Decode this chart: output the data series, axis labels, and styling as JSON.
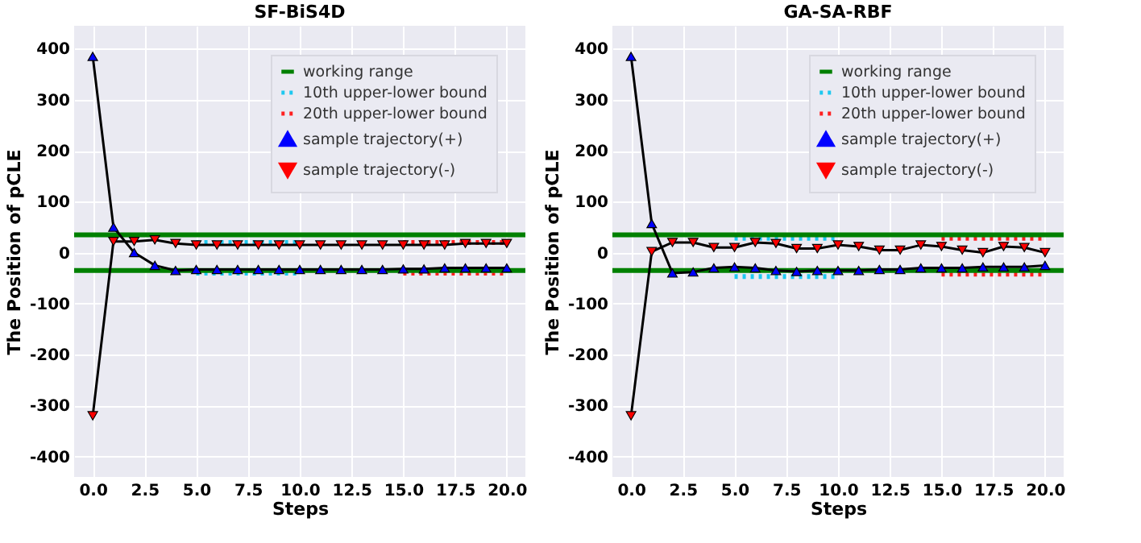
{
  "chart_data": [
    {
      "type": "line",
      "title": "SF-BiS4D",
      "xlabel": "Steps",
      "ylabel": "The Position of pCLE",
      "xlim": [
        -0.9,
        20.9
      ],
      "ylim": [
        -440,
        445
      ],
      "xticks": [
        {
          "value": 0,
          "label": "0.0"
        },
        {
          "value": 2.5,
          "label": "2.5"
        },
        {
          "value": 5,
          "label": "5.0"
        },
        {
          "value": 7.5,
          "label": "7.5"
        },
        {
          "value": 10,
          "label": "10.0"
        },
        {
          "value": 12.5,
          "label": "12.5"
        },
        {
          "value": 15,
          "label": "15.0"
        },
        {
          "value": 17.5,
          "label": "17.5"
        },
        {
          "value": 20,
          "label": "20.0"
        }
      ],
      "yticks": [
        -400,
        -300,
        -200,
        -100,
        0,
        100,
        200,
        300,
        400
      ],
      "grid": true,
      "legend": "top right",
      "ref_lines": [
        {
          "axis": "y",
          "value": 35,
          "label": "working range",
          "color": "#008000"
        },
        {
          "axis": "y",
          "value": -35,
          "color": "#008000"
        }
      ],
      "series": [
        {
          "name": "10th upper-lower bound",
          "color": "#1ec8f0",
          "line_style": "dotted",
          "x": [
            5,
            10
          ],
          "values": [
            20,
            20
          ]
        },
        {
          "color": "#1ec8f0",
          "line_style": "dotted",
          "x": [
            5,
            10
          ],
          "values": [
            -40,
            -40
          ]
        },
        {
          "name": "20th upper-lower bound",
          "color": "#ff2020",
          "line_style": "dotted",
          "x": [
            15,
            20
          ],
          "values": [
            20,
            20
          ]
        },
        {
          "color": "#ff2020",
          "line_style": "dotted",
          "x": [
            15,
            20
          ],
          "values": [
            -40,
            -40
          ]
        },
        {
          "name": "sample trajectory(+)",
          "color": "#0000ff",
          "marker": "triangle",
          "x": [
            0,
            1,
            2,
            3,
            4,
            5,
            6,
            7,
            8,
            9,
            10,
            11,
            12,
            13,
            14,
            15,
            16,
            17,
            18,
            19,
            20
          ],
          "values": [
            385,
            50,
            0,
            -25,
            -35,
            -33,
            -33,
            -33,
            -33,
            -33,
            -33,
            -33,
            -33,
            -33,
            -33,
            -32,
            -32,
            -30,
            -30,
            -30,
            -30
          ]
        },
        {
          "name": "sample trajectory(-)",
          "color": "#ff0000",
          "marker": "triangle-down",
          "x": [
            0,
            1,
            2,
            3,
            4,
            5,
            6,
            7,
            8,
            9,
            10,
            11,
            12,
            13,
            14,
            15,
            16,
            17,
            18,
            19,
            20
          ],
          "values": [
            -320,
            22,
            22,
            25,
            18,
            15,
            15,
            15,
            15,
            15,
            15,
            15,
            15,
            15,
            15,
            15,
            15,
            15,
            18,
            18,
            18
          ]
        }
      ]
    },
    {
      "type": "line",
      "title": "GA-SA-RBF",
      "xlabel": "Steps",
      "ylabel": "The Position of pCLE",
      "xlim": [
        -0.9,
        20.9
      ],
      "ylim": [
        -440,
        445
      ],
      "xticks": [
        {
          "value": 0,
          "label": "0.0"
        },
        {
          "value": 2.5,
          "label": "2.5"
        },
        {
          "value": 5,
          "label": "5.0"
        },
        {
          "value": 7.5,
          "label": "7.5"
        },
        {
          "value": 10,
          "label": "10.0"
        },
        {
          "value": 12.5,
          "label": "12.5"
        },
        {
          "value": 15,
          "label": "15.0"
        },
        {
          "value": 17.5,
          "label": "17.5"
        },
        {
          "value": 20,
          "label": "20.0"
        }
      ],
      "yticks": [
        -400,
        -300,
        -200,
        -100,
        0,
        100,
        200,
        300,
        400
      ],
      "grid": true,
      "legend": "top right",
      "ref_lines": [
        {
          "axis": "y",
          "value": 35,
          "label": "working range",
          "color": "#008000"
        },
        {
          "axis": "y",
          "value": -35,
          "color": "#008000"
        }
      ],
      "series": [
        {
          "name": "10th upper-lower bound",
          "color": "#1ec8f0",
          "line_style": "dotted",
          "x": [
            5,
            10
          ],
          "values": [
            28,
            28
          ]
        },
        {
          "color": "#1ec8f0",
          "line_style": "dotted",
          "x": [
            5,
            10
          ],
          "values": [
            -47,
            -47
          ]
        },
        {
          "name": "20th upper-lower bound",
          "color": "#ff2020",
          "line_style": "dotted",
          "x": [
            15,
            20
          ],
          "values": [
            28,
            28
          ]
        },
        {
          "color": "#ff2020",
          "line_style": "dotted",
          "x": [
            15,
            20
          ],
          "values": [
            -42,
            -42
          ]
        },
        {
          "name": "sample trajectory(+)",
          "color": "#0000ff",
          "marker": "triangle",
          "x": [
            0,
            1,
            2,
            3,
            4,
            5,
            6,
            7,
            8,
            9,
            10,
            11,
            12,
            13,
            14,
            15,
            16,
            17,
            18,
            19,
            20
          ],
          "values": [
            385,
            57,
            -40,
            -38,
            -30,
            -28,
            -30,
            -35,
            -37,
            -35,
            -35,
            -35,
            -33,
            -33,
            -30,
            -30,
            -30,
            -28,
            -28,
            -28,
            -25
          ]
        },
        {
          "name": "sample trajectory(-)",
          "color": "#ff0000",
          "marker": "triangle-down",
          "x": [
            0,
            1,
            2,
            3,
            4,
            5,
            6,
            7,
            8,
            9,
            10,
            11,
            12,
            13,
            14,
            15,
            16,
            17,
            18,
            19,
            20
          ],
          "values": [
            -320,
            2,
            20,
            20,
            10,
            10,
            20,
            18,
            8,
            8,
            15,
            12,
            5,
            5,
            15,
            12,
            5,
            0,
            12,
            10,
            0
          ]
        }
      ]
    }
  ]
}
